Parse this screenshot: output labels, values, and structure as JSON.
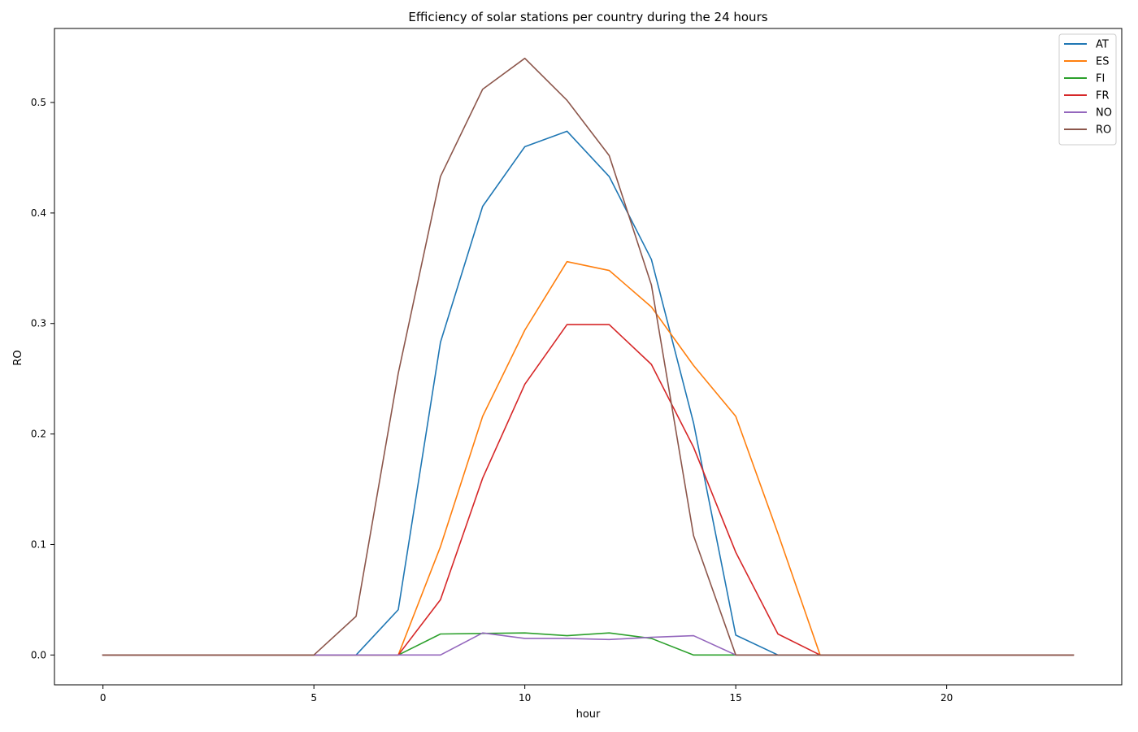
{
  "chart_data": {
    "type": "line",
    "title": "Efficiency of solar stations per country during the 24 hours",
    "xlabel": "hour",
    "ylabel": "RO",
    "xlim": [
      -1.15,
      24.15
    ],
    "ylim": [
      -0.027,
      0.567
    ],
    "xticks": [
      0,
      5,
      10,
      15,
      20
    ],
    "xtick_labels": [
      "0",
      "5",
      "10",
      "15",
      "20"
    ],
    "yticks": [
      0.0,
      0.1,
      0.2,
      0.3,
      0.4,
      0.5
    ],
    "ytick_labels": [
      "0.0",
      "0.1",
      "0.2",
      "0.3",
      "0.4",
      "0.5"
    ],
    "grid": false,
    "legend_position": "top-right",
    "x": [
      0,
      1,
      2,
      3,
      4,
      5,
      6,
      7,
      8,
      9,
      10,
      11,
      12,
      13,
      14,
      15,
      16,
      17,
      18,
      19,
      20,
      21,
      22,
      23
    ],
    "series": [
      {
        "name": "AT",
        "color": "#1f77b4",
        "values": [
          0,
          0,
          0,
          0,
          0,
          0,
          0,
          0.041,
          0.283,
          0.406,
          0.46,
          0.474,
          0.433,
          0.358,
          0.21,
          0.018,
          0,
          0,
          0,
          0,
          0,
          0,
          0,
          0
        ]
      },
      {
        "name": "ES",
        "color": "#ff7f0e",
        "values": [
          0,
          0,
          0,
          0,
          0,
          0,
          0,
          0,
          0.098,
          0.216,
          0.294,
          0.356,
          0.348,
          0.315,
          0.262,
          0.216,
          0.11,
          0,
          0,
          0,
          0,
          0,
          0,
          0
        ]
      },
      {
        "name": "FI",
        "color": "#2ca02c",
        "values": [
          0,
          0,
          0,
          0,
          0,
          0,
          0,
          0,
          0.019,
          0.0195,
          0.02,
          0.0175,
          0.02,
          0.015,
          0,
          0,
          0,
          0,
          0,
          0,
          0,
          0,
          0,
          0
        ]
      },
      {
        "name": "FR",
        "color": "#d62728",
        "values": [
          0,
          0,
          0,
          0,
          0,
          0,
          0,
          0,
          0.05,
          0.16,
          0.245,
          0.299,
          0.299,
          0.263,
          0.188,
          0.093,
          0.019,
          0,
          0,
          0,
          0,
          0,
          0,
          0
        ]
      },
      {
        "name": "NO",
        "color": "#9467bd",
        "values": [
          0,
          0,
          0,
          0,
          0,
          0,
          0,
          0,
          0,
          0.02,
          0.015,
          0.015,
          0.014,
          0.016,
          0.0175,
          0,
          0,
          0,
          0,
          0,
          0,
          0,
          0,
          0
        ]
      },
      {
        "name": "RO",
        "color": "#8c564b",
        "values": [
          0,
          0,
          0,
          0,
          0,
          0,
          0.035,
          0.255,
          0.433,
          0.512,
          0.54,
          0.502,
          0.452,
          0.335,
          0.108,
          0,
          0,
          0,
          0,
          0,
          0,
          0,
          0,
          0
        ]
      }
    ]
  }
}
